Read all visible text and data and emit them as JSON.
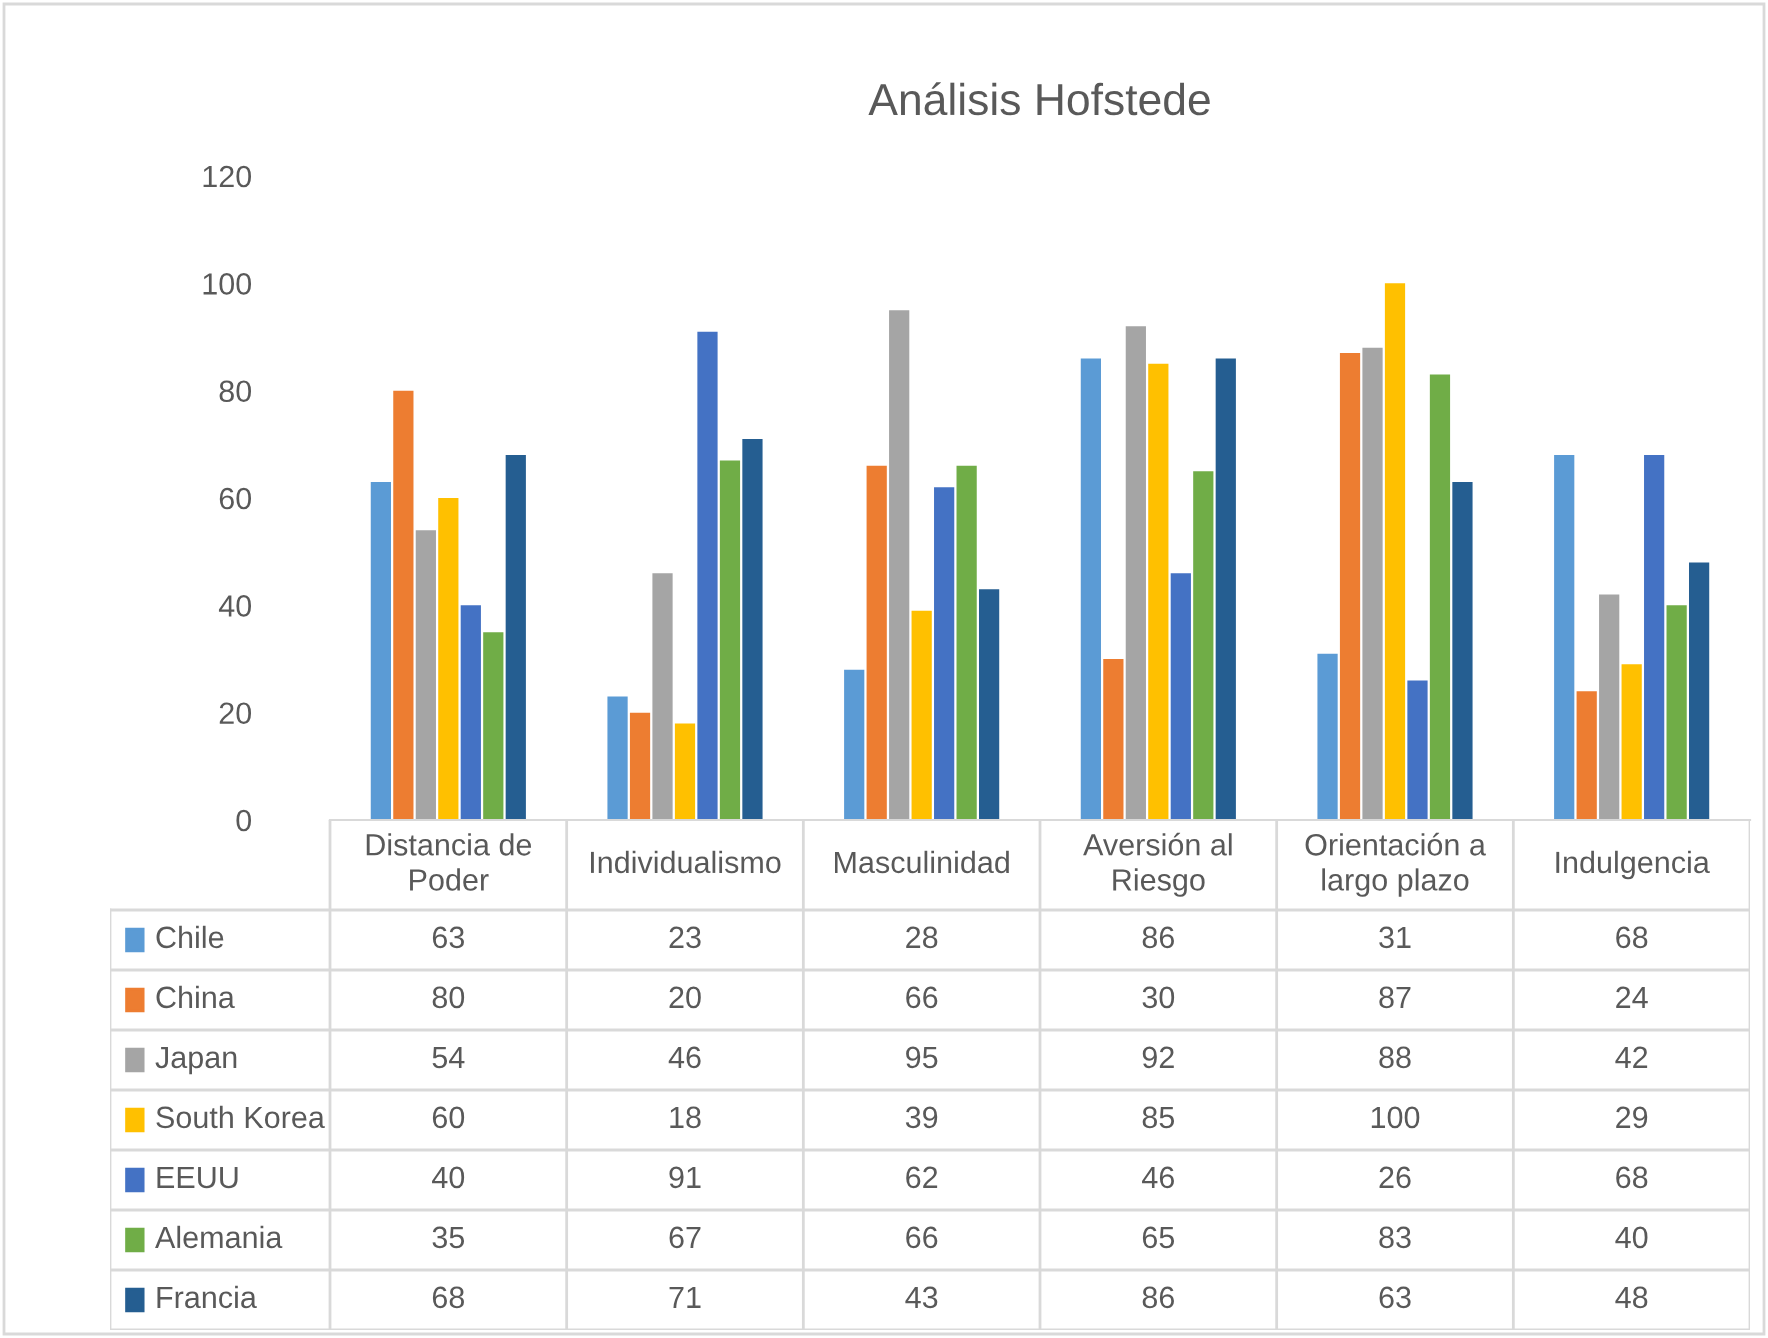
{
  "chart_data": {
    "type": "bar",
    "title": "Análisis Hofstede",
    "categories": [
      "Distancia de\nPoder",
      "Individualismo",
      "Masculinidad",
      "Aversión al\nRiesgo",
      "Orientación a\nlargo plazo",
      "Indulgencia"
    ],
    "series": [
      {
        "name": "Chile",
        "color": "#5b9bd5",
        "values": [
          63,
          23,
          28,
          86,
          31,
          68
        ]
      },
      {
        "name": "China",
        "color": "#ed7d31",
        "values": [
          80,
          20,
          66,
          30,
          87,
          24
        ]
      },
      {
        "name": "Japan",
        "color": "#a5a5a5",
        "values": [
          54,
          46,
          95,
          92,
          88,
          42
        ]
      },
      {
        "name": "South Korea",
        "color": "#ffc000",
        "values": [
          60,
          18,
          39,
          85,
          100,
          29
        ]
      },
      {
        "name": "EEUU",
        "color": "#4472c4",
        "values": [
          40,
          91,
          62,
          46,
          26,
          68
        ]
      },
      {
        "name": "Alemania",
        "color": "#70ad47",
        "values": [
          35,
          67,
          66,
          65,
          83,
          40
        ]
      },
      {
        "name": "Francia",
        "color": "#255e91",
        "values": [
          68,
          71,
          43,
          86,
          63,
          48
        ]
      }
    ],
    "ylim": [
      0,
      120
    ],
    "yticks": [
      0,
      20,
      40,
      60,
      80,
      100,
      120
    ],
    "grid": false,
    "legend": "bottom",
    "data_labels": true
  }
}
